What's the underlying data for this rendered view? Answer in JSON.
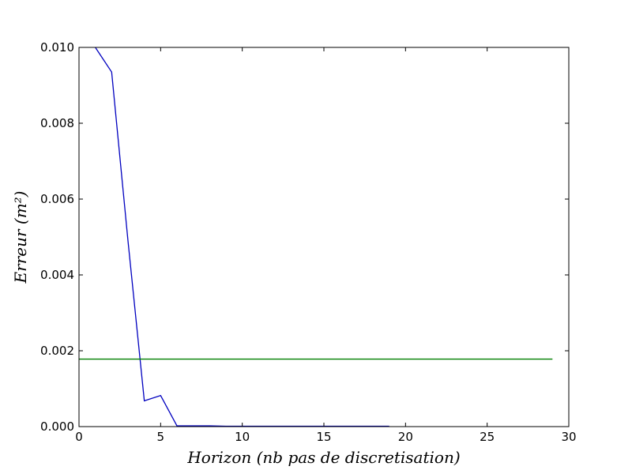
{
  "chart_data": {
    "type": "line",
    "xlabel": "Horizon (nb pas de discretisation)",
    "ylabel": "Erreur (m²)",
    "xlim": [
      0,
      30
    ],
    "ylim": [
      0,
      0.01
    ],
    "x_ticks": [
      "0",
      "5",
      "10",
      "15",
      "20",
      "25",
      "30"
    ],
    "y_ticks": [
      "0.000",
      "0.002",
      "0.004",
      "0.006",
      "0.008",
      "0.010"
    ],
    "grid": false,
    "legend": "none",
    "series": [
      {
        "color": "#0000bf",
        "x": [
          1,
          2,
          3,
          4,
          5,
          6,
          7,
          8,
          9,
          10,
          11,
          12,
          13,
          14,
          15,
          16,
          17,
          18,
          19
        ],
        "y": [
          0.01,
          0.00935,
          0.0049,
          0.00068,
          0.00082,
          2e-05,
          2e-05,
          2e-05,
          1e-05,
          1e-05,
          1e-05,
          1e-05,
          1e-05,
          1e-05,
          1e-05,
          1e-05,
          1e-05,
          1e-05,
          1e-05
        ]
      },
      {
        "color": "#007f00",
        "x": [
          0,
          29
        ],
        "y": [
          0.00178,
          0.00178
        ]
      }
    ]
  }
}
